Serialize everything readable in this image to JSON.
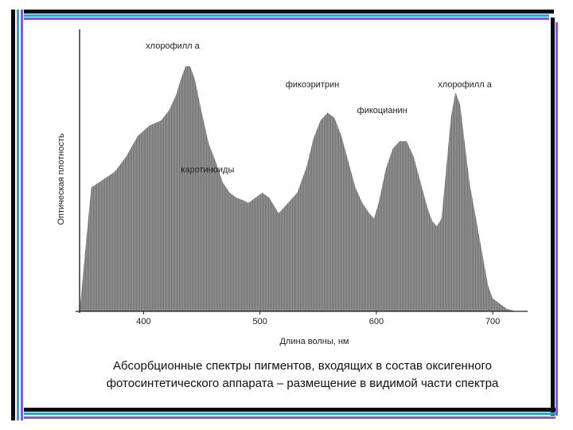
{
  "slide": {
    "caption_line1": "Абсорбционные спектры пигментов, входящих в состав оксигенного",
    "caption_line2": "фотосинтетического аппарата – размещение в видимой части спектра",
    "colors": {
      "frame_dark": "#0b0b18",
      "frame_teal": "#2aa8c8",
      "frame_violet": "#7a5ee0",
      "chart_fill": "#8e8e8e"
    }
  },
  "chart_data": {
    "type": "area",
    "xlabel": "Длина волны, нм",
    "ylabel": "Оптическая плотность",
    "xlim": [
      345,
      730
    ],
    "ylim": [
      0,
      100
    ],
    "xticks": [
      400,
      500,
      600,
      700
    ],
    "x": [
      345,
      355,
      365,
      375,
      385,
      395,
      405,
      415,
      422,
      428,
      432,
      436,
      440,
      444,
      450,
      456,
      462,
      468,
      474,
      480,
      486,
      490,
      496,
      502,
      508,
      516,
      524,
      532,
      540,
      546,
      552,
      558,
      564,
      570,
      576,
      582,
      588,
      594,
      598,
      602,
      608,
      614,
      620,
      626,
      632,
      638,
      644,
      648,
      652,
      656,
      660,
      664,
      668,
      672,
      676,
      680,
      684,
      688,
      692,
      696,
      700,
      706,
      712,
      720,
      726
    ],
    "series": [
      {
        "values": [
          0,
          48,
          51,
          54,
          60,
          68,
          72,
          74,
          78,
          84,
          90,
          95,
          95,
          90,
          77,
          65,
          58,
          50,
          46,
          44,
          43,
          42,
          44,
          46,
          44,
          38,
          42,
          46,
          56,
          67,
          74,
          77,
          75,
          68,
          58,
          48,
          42,
          38,
          36,
          42,
          55,
          63,
          66,
          66,
          60,
          50,
          40,
          35,
          33,
          36,
          55,
          75,
          85,
          80,
          65,
          50,
          40,
          30,
          20,
          10,
          5,
          3,
          1,
          0,
          0
        ]
      }
    ],
    "annotations": [
      {
        "text": "хлорофилл а",
        "x": 425,
        "y": 100
      },
      {
        "text": "фикоэритрин",
        "x": 545,
        "y": 85
      },
      {
        "text": "хлорофилл а",
        "x": 676,
        "y": 85
      },
      {
        "text": "фикоцианин",
        "x": 605,
        "y": 75
      },
      {
        "text": "каротиноиды",
        "x": 455,
        "y": 52
      }
    ]
  }
}
